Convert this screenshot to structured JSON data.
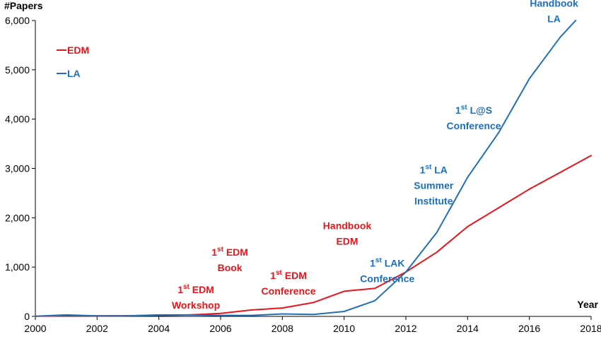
{
  "chart_data": {
    "type": "line",
    "ylabel": "#Papers",
    "xlabel": "Year",
    "xlim": [
      2000,
      2018
    ],
    "ylim": [
      0,
      6000
    ],
    "x_ticks": [
      "2000",
      "2002",
      "2004",
      "2006",
      "2008",
      "2010",
      "2012",
      "2014",
      "2016",
      "2018"
    ],
    "y_ticks": [
      "0",
      "1,000",
      "2,000",
      "3,000",
      "4,000",
      "5,000",
      "6,000"
    ],
    "legend_position": "top-left",
    "series": [
      {
        "name": "EDM",
        "color": "#e8141b",
        "x": [
          2000,
          2001,
          2002,
          2003,
          2004,
          2005,
          2006,
          2007,
          2008,
          2009,
          2010,
          2011,
          2012,
          2013,
          2014,
          2015,
          2016,
          2017,
          2018
        ],
        "y": [
          5,
          10,
          10,
          15,
          20,
          30,
          60,
          130,
          170,
          280,
          510,
          570,
          900,
          1300,
          1820,
          2200,
          2580,
          2920,
          3260
        ]
      },
      {
        "name": "LA",
        "color": "#1f6fb8",
        "x": [
          2000,
          2001,
          2002,
          2003,
          2004,
          2005,
          2006,
          2007,
          2008,
          2009,
          2010,
          2011,
          2012,
          2013,
          2014,
          2015,
          2016,
          2017,
          2017.5
        ],
        "y": [
          5,
          30,
          10,
          10,
          30,
          30,
          20,
          20,
          50,
          40,
          100,
          320,
          900,
          1700,
          2820,
          3720,
          4820,
          5660,
          6000
        ]
      }
    ],
    "annotations": [
      {
        "lines": [
          "1st EDM",
          "Workshop"
        ],
        "series": "EDM",
        "x": 2005.2,
        "y": 470
      },
      {
        "lines": [
          "1st EDM",
          "Book"
        ],
        "series": "EDM",
        "x": 2006.3,
        "y": 1230
      },
      {
        "lines": [
          "1st EDM",
          "Conference"
        ],
        "series": "EDM",
        "x": 2008.2,
        "y": 760
      },
      {
        "lines": [
          "Handbook",
          "EDM"
        ],
        "series": "EDM",
        "x": 2010.1,
        "y": 1770
      },
      {
        "lines": [
          "1st LAK",
          "Conference"
        ],
        "series": "LA",
        "x": 2011.4,
        "y": 1010
      },
      {
        "lines": [
          "1st LA",
          "Summer",
          "Institute"
        ],
        "series": "LA",
        "x": 2012.9,
        "y": 2900
      },
      {
        "lines": [
          "1st L@S",
          "Conference"
        ],
        "series": "LA",
        "x": 2014.2,
        "y": 4110
      },
      {
        "lines": [
          "Handbook",
          "LA"
        ],
        "series": "LA",
        "x": 2016.8,
        "y": 6280
      }
    ]
  }
}
